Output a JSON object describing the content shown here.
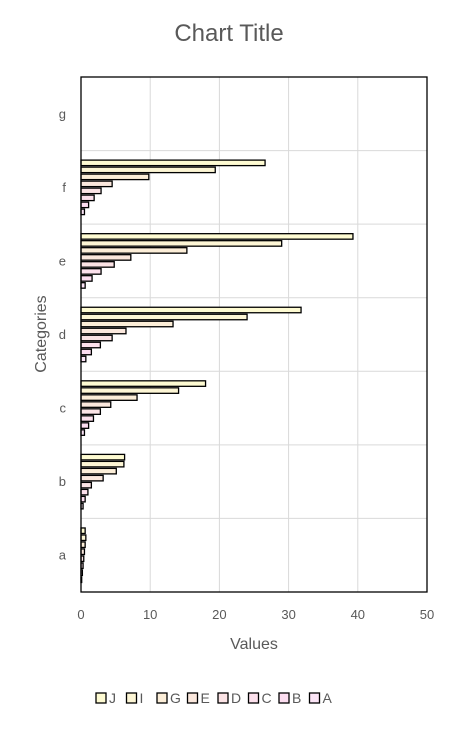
{
  "chart_data": {
    "type": "bar",
    "orientation": "horizontal",
    "title": "Chart Title",
    "xlabel": "Values",
    "ylabel": "Categories",
    "categories": [
      "a",
      "b",
      "c",
      "d",
      "e",
      "f",
      "g"
    ],
    "xlim": [
      0,
      50
    ],
    "xticks": [
      0,
      10,
      20,
      30,
      40,
      50
    ],
    "grid": true,
    "legend_position": "bottom",
    "series": [
      {
        "name": "A",
        "color": "#FBE4F6",
        "values": [
          0.1,
          0.3,
          0.5,
          0.7,
          0.6,
          0.5,
          null
        ]
      },
      {
        "name": "B",
        "color": "#FCDDF0",
        "values": [
          0.2,
          0.6,
          1.1,
          1.5,
          1.6,
          1.1,
          null
        ]
      },
      {
        "name": "C",
        "color": "#FCE0EC",
        "values": [
          0.3,
          1.0,
          1.8,
          2.8,
          2.9,
          1.9,
          null
        ]
      },
      {
        "name": "D",
        "color": "#FBE3E5",
        "values": [
          0.4,
          1.5,
          2.8,
          4.5,
          4.8,
          2.9,
          null
        ]
      },
      {
        "name": "E",
        "color": "#FBE8DD",
        "values": [
          0.5,
          3.2,
          4.3,
          6.5,
          7.2,
          4.5,
          null
        ]
      },
      {
        "name": "G",
        "color": "#FCEED8",
        "values": [
          0.6,
          5.1,
          8.1,
          13.3,
          15.3,
          9.8,
          null
        ]
      },
      {
        "name": "I",
        "color": "#FDF6D5",
        "values": [
          0.7,
          6.2,
          14.1,
          24.0,
          29.0,
          19.4,
          null
        ]
      },
      {
        "name": "J",
        "color": "#FEFBD2",
        "values": [
          0.6,
          6.3,
          18.0,
          31.8,
          39.3,
          26.6,
          null
        ]
      }
    ]
  }
}
